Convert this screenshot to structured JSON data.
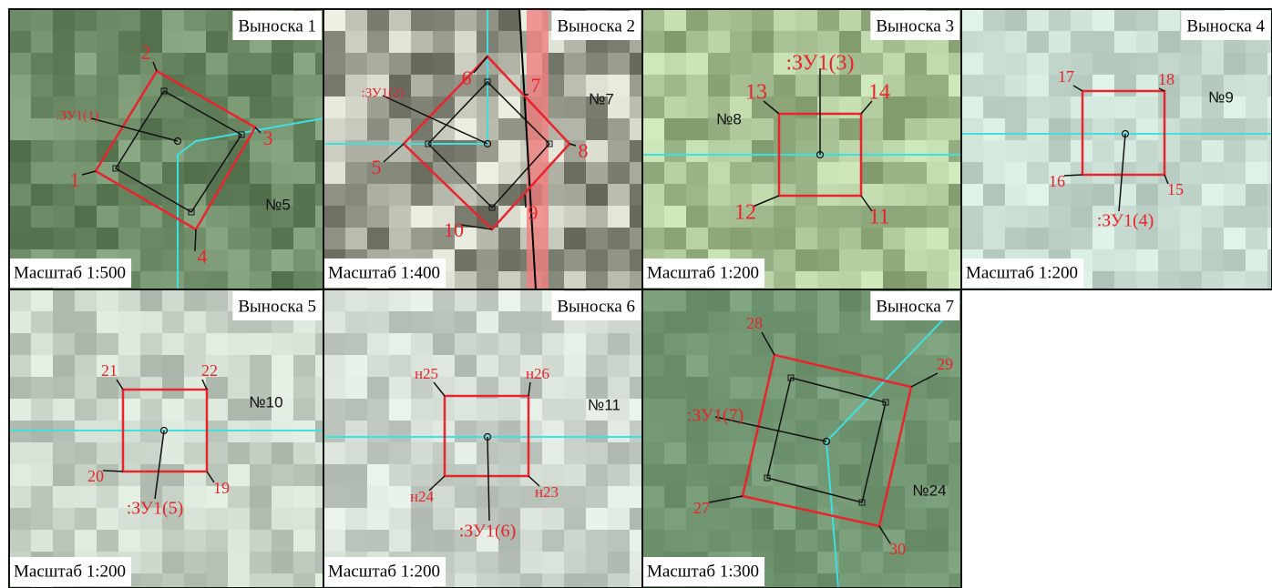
{
  "callouts": [
    {
      "title": "Выноска 1",
      "scale": "Масштаб 1:500",
      "parcel": ":ЗУ1(1)",
      "plot": "№5",
      "points": [
        "1",
        "2",
        "3",
        "4"
      ]
    },
    {
      "title": "Выноска 2",
      "scale": "Масштаб 1:400",
      "parcel": ":ЗУ1(2)",
      "plot": "№7",
      "points": [
        "5",
        "6",
        "7",
        "8",
        "9",
        "10"
      ]
    },
    {
      "title": "Выноска 3",
      "scale": "Масштаб 1:200",
      "parcel": ":ЗУ1(3)",
      "plot": "№8",
      "points": [
        "11",
        "12",
        "13",
        "14"
      ]
    },
    {
      "title": "Выноска 4",
      "scale": "Масштаб 1:200",
      "parcel": ":ЗУ1(4)",
      "plot": "№9",
      "points": [
        "15",
        "16",
        "17",
        "18"
      ]
    },
    {
      "title": "Выноска 5",
      "scale": "Масштаб 1:200",
      "parcel": ":ЗУ1(5)",
      "plot": "№10",
      "points": [
        "19",
        "20",
        "21",
        "22"
      ]
    },
    {
      "title": "Выноска 6",
      "scale": "Масштаб 1:200",
      "parcel": ":ЗУ1(6)",
      "plot": "№11",
      "points": [
        "н23",
        "н24",
        "н25",
        "н26"
      ]
    },
    {
      "title": "Выноска 7",
      "scale": "Масштаб 1:300",
      "parcel": ":ЗУ1(7)",
      "plot": "№24",
      "points": [
        "27",
        "28",
        "29",
        "30"
      ]
    }
  ]
}
